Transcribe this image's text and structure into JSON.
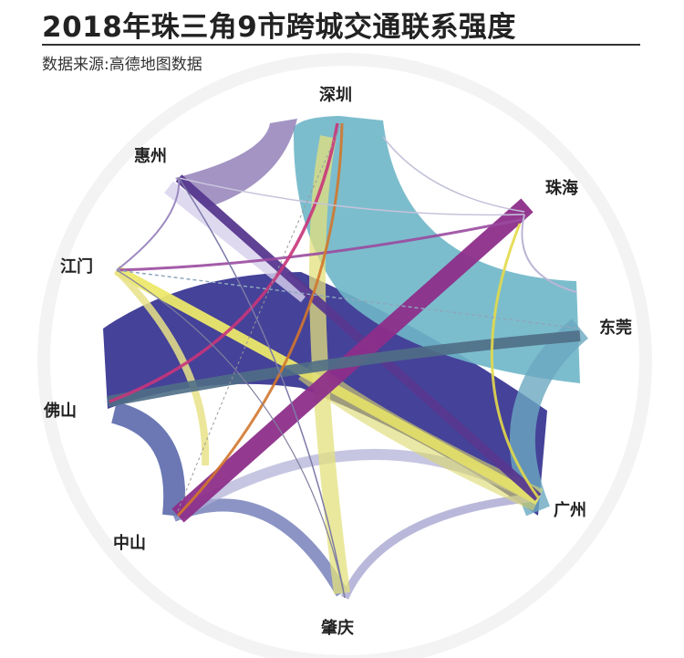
{
  "header": {
    "title": "2018年珠三角9市跨城交通联系强度",
    "subtitle": "数据来源:高德地图数据"
  },
  "cities": {
    "shenzhen": "深圳",
    "zhuhai": "珠海",
    "dongguan": "东莞",
    "guangzhou": "广州",
    "zhaoqing": "肇庆",
    "zhongshan": "中山",
    "foshan": "佛山",
    "jiangmen": "江门",
    "huizhou": "惠州"
  },
  "colors": {
    "guangzhou_foshan": "#3f3c96",
    "shenzhen_dongguan": "#6eb6c8",
    "zhuhai_zhongshan": "#8d2e8a",
    "jiangmen_guangzhou": "#ece86a",
    "huizhou_guangzhou": "#57388f",
    "zhongshan_foshan": "#5b69ac",
    "background_ring": "#f5f5f5"
  }
}
